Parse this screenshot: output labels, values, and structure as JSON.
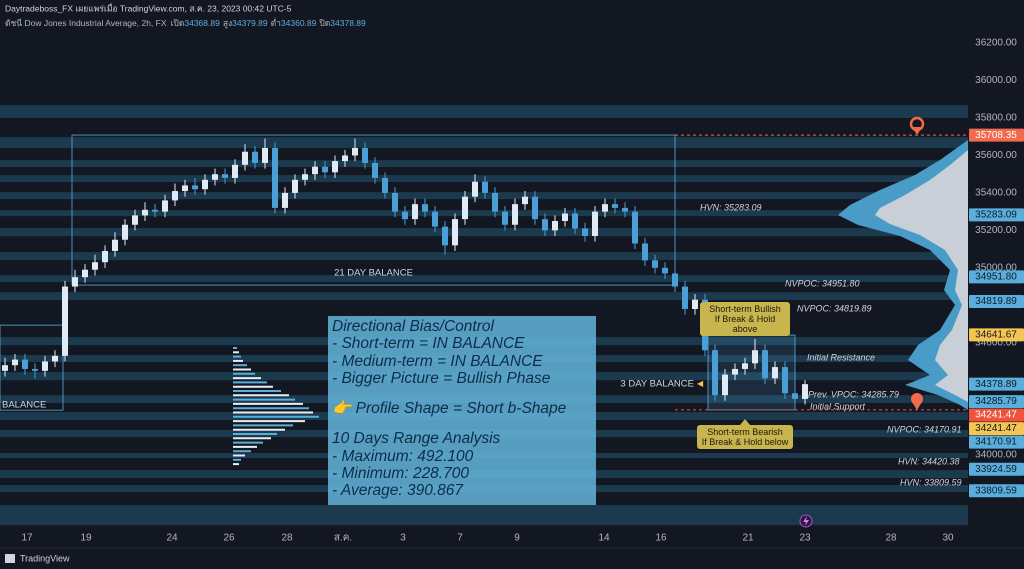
{
  "header": {
    "publisher": "Daytradeboss_FX เผยแพร่เมื่อ TradingView.com, ส.ค. 23, 2023 00:42 UTC-5",
    "symbol": "ดัชนี Dow Jones Industrial Average, 2h, FX",
    "ohlc": [
      {
        "label": "เปิด",
        "value": "34368.89"
      },
      {
        "label": "สูง",
        "value": "34379.89"
      },
      {
        "label": "ต่ำ",
        "value": "34360.89"
      },
      {
        "label": "ปิด",
        "value": "34378.89"
      }
    ]
  },
  "chart_data": {
    "type": "candlestick",
    "up_color": "#dfeaf5",
    "down_color": "#4a9fd6",
    "zone_color": "#1d3e52",
    "xlim": [
      -0.5,
      96.3
    ],
    "ylim": [
      33600,
      36270
    ],
    "xticks": [
      {
        "value": 2.2,
        "label": "17"
      },
      {
        "value": 8.1,
        "label": "19"
      },
      {
        "value": 16.7,
        "label": "24"
      },
      {
        "value": 22.4,
        "label": "26"
      },
      {
        "value": 28.2,
        "label": "28"
      },
      {
        "value": 33.8,
        "label": "ส.ค."
      },
      {
        "value": 39.8,
        "label": "3"
      },
      {
        "value": 45.5,
        "label": "7"
      },
      {
        "value": 51.2,
        "label": "9"
      },
      {
        "value": 59.9,
        "label": "14"
      },
      {
        "value": 65.6,
        "label": "16"
      },
      {
        "value": 74.3,
        "label": "21"
      },
      {
        "value": 80,
        "label": "23"
      },
      {
        "value": 88.6,
        "label": "28"
      },
      {
        "value": 94.3,
        "label": "30"
      }
    ],
    "yticks": [
      {
        "value": 36200,
        "label": "36200.00"
      },
      {
        "value": 36000,
        "label": "36000.00"
      },
      {
        "value": 35800,
        "label": "35800.00"
      },
      {
        "value": 35600,
        "label": "35600.00"
      },
      {
        "value": 35400,
        "label": "35400.00"
      },
      {
        "value": 35200,
        "label": "35200.00"
      },
      {
        "value": 35000,
        "label": "35000.00"
      },
      {
        "value": 34600,
        "label": "34600.00"
      },
      {
        "value": 34000,
        "label": "34000.00"
      }
    ],
    "ohlc": [
      [
        34450,
        34520,
        34420,
        34480
      ],
      [
        34480,
        34540,
        34450,
        34510
      ],
      [
        34510,
        34540,
        34430,
        34460
      ],
      [
        34460,
        34490,
        34410,
        34450
      ],
      [
        34450,
        34530,
        34420,
        34500
      ],
      [
        34500,
        34560,
        34470,
        34530
      ],
      [
        34530,
        34930,
        34500,
        34900
      ],
      [
        34900,
        34990,
        34870,
        34950
      ],
      [
        34950,
        35020,
        34920,
        34990
      ],
      [
        34990,
        35070,
        34960,
        35030
      ],
      [
        35030,
        35120,
        35000,
        35090
      ],
      [
        35090,
        35190,
        35060,
        35150
      ],
      [
        35150,
        35260,
        35120,
        35230
      ],
      [
        35230,
        35310,
        35200,
        35280
      ],
      [
        35280,
        35350,
        35250,
        35310
      ],
      [
        35310,
        35340,
        35270,
        35300
      ],
      [
        35300,
        35390,
        35270,
        35360
      ],
      [
        35360,
        35450,
        35330,
        35410
      ],
      [
        35410,
        35470,
        35380,
        35440
      ],
      [
        35440,
        35480,
        35390,
        35420
      ],
      [
        35420,
        35500,
        35390,
        35470
      ],
      [
        35470,
        35530,
        35440,
        35500
      ],
      [
        35500,
        35530,
        35450,
        35480
      ],
      [
        35480,
        35580,
        35450,
        35550
      ],
      [
        35550,
        35660,
        35520,
        35620
      ],
      [
        35620,
        35650,
        35530,
        35560
      ],
      [
        35560,
        35690,
        35530,
        35640
      ],
      [
        35640,
        35670,
        35290,
        35320
      ],
      [
        35320,
        35430,
        35290,
        35400
      ],
      [
        35400,
        35500,
        35370,
        35470
      ],
      [
        35470,
        35530,
        35440,
        35500
      ],
      [
        35500,
        35570,
        35470,
        35540
      ],
      [
        35540,
        35570,
        35480,
        35510
      ],
      [
        35510,
        35600,
        35480,
        35570
      ],
      [
        35570,
        35630,
        35540,
        35600
      ],
      [
        35600,
        35690,
        35570,
        35640
      ],
      [
        35640,
        35670,
        35530,
        35560
      ],
      [
        35560,
        35590,
        35450,
        35480
      ],
      [
        35480,
        35510,
        35370,
        35400
      ],
      [
        35400,
        35430,
        35270,
        35300
      ],
      [
        35300,
        35330,
        35230,
        35260
      ],
      [
        35260,
        35370,
        35230,
        35340
      ],
      [
        35340,
        35370,
        35270,
        35300
      ],
      [
        35300,
        35330,
        35190,
        35220
      ],
      [
        35220,
        35250,
        35070,
        35120
      ],
      [
        35120,
        35290,
        35090,
        35260
      ],
      [
        35260,
        35410,
        35230,
        35380
      ],
      [
        35380,
        35500,
        35350,
        35460
      ],
      [
        35460,
        35490,
        35370,
        35400
      ],
      [
        35400,
        35430,
        35270,
        35300
      ],
      [
        35300,
        35330,
        35200,
        35230
      ],
      [
        35230,
        35370,
        35200,
        35340
      ],
      [
        35340,
        35410,
        35310,
        35380
      ],
      [
        35380,
        35410,
        35230,
        35260
      ],
      [
        35260,
        35290,
        35170,
        35200
      ],
      [
        35200,
        35280,
        35170,
        35250
      ],
      [
        35250,
        35320,
        35220,
        35290
      ],
      [
        35290,
        35320,
        35180,
        35210
      ],
      [
        35210,
        35240,
        35140,
        35170
      ],
      [
        35170,
        35330,
        35140,
        35300
      ],
      [
        35300,
        35370,
        35270,
        35340
      ],
      [
        35340,
        35370,
        35290,
        35320
      ],
      [
        35320,
        35350,
        35270,
        35300
      ],
      [
        35300,
        35330,
        35100,
        35130
      ],
      [
        35130,
        35160,
        35010,
        35040
      ],
      [
        35040,
        35070,
        34970,
        35000
      ],
      [
        35000,
        35030,
        34940,
        34970
      ],
      [
        34970,
        35000,
        34870,
        34900
      ],
      [
        34900,
        34930,
        34750,
        34780
      ],
      [
        34780,
        34860,
        34750,
        34830
      ],
      [
        34830,
        34860,
        34530,
        34560
      ],
      [
        34560,
        34590,
        34290,
        34320
      ],
      [
        34320,
        34460,
        34290,
        34430
      ],
      [
        34430,
        34490,
        34400,
        34460
      ],
      [
        34460,
        34520,
        34430,
        34490
      ],
      [
        34490,
        34620,
        34460,
        34560
      ],
      [
        34560,
        34590,
        34380,
        34410
      ],
      [
        34410,
        34500,
        34380,
        34470
      ],
      [
        34470,
        34500,
        34300,
        34330
      ],
      [
        34330,
        34360,
        34270,
        34300
      ],
      [
        34300,
        34400,
        34270,
        34378.89
      ]
    ],
    "zones": [
      [
        35800,
        35869
      ],
      [
        35639,
        35698
      ],
      [
        35538,
        35575
      ],
      [
        35458,
        35495
      ],
      [
        35367,
        35404
      ],
      [
        35276,
        35308
      ],
      [
        35169,
        35212
      ],
      [
        35041,
        35084
      ],
      [
        34924,
        34961
      ],
      [
        34828,
        34870
      ],
      [
        34587,
        34630
      ],
      [
        34497,
        34534
      ],
      [
        34400,
        34443
      ],
      [
        34278,
        34320
      ],
      [
        34187,
        34230
      ],
      [
        34096,
        34134
      ],
      [
        33984,
        34011
      ],
      [
        33877,
        33920
      ],
      [
        33802,
        33840
      ],
      [
        33626,
        33733
      ]
    ],
    "boxes": [
      {
        "label": "21 DAY BALANCE",
        "x": [
          6.7,
          67
        ],
        "y": [
          34908,
          35709
        ]
      },
      {
        "label": "BALANCE",
        "x": [
          -0.5,
          5.8
        ],
        "y": [
          34240,
          34694
        ]
      },
      {
        "label": "3 DAY BALANCE",
        "x": [
          70.3,
          79
        ],
        "y": [
          34241,
          34641
        ]
      }
    ],
    "price_labels": [
      {
        "value": 35708.35,
        "label": "35708.35",
        "color": "#f2694d",
        "dashed": true
      },
      {
        "value": 35283.09,
        "label": "35283.09",
        "color": "#5aaedc"
      },
      {
        "value": 34951.8,
        "label": "34951.80",
        "color": "#5aaedc"
      },
      {
        "value": 34819.89,
        "label": "34819.89",
        "color": "#5aaedc"
      },
      {
        "value": 34641.67,
        "label": "34641.67",
        "color": "#f5c451"
      },
      {
        "value": 34378.89,
        "label": "34378.89",
        "color": "#5aaedc"
      },
      {
        "value": 34285.79,
        "label": "34285.79",
        "color": "#5aaedc"
      },
      {
        "value": 34241.47,
        "label": "34241.47",
        "color": "#f0523b",
        "dashed": true
      },
      {
        "value": 34241.47,
        "label": "34241.47",
        "color": "#f5c451"
      },
      {
        "value": 34170.91,
        "label": "34170.91",
        "color": "#5aaedc"
      },
      {
        "value": 33924.59,
        "label": "33924.59",
        "color": "#5aaedc"
      },
      {
        "value": 33809.59,
        "label": "33809.59",
        "color": "#5aaedc"
      }
    ],
    "annotations": [
      "HVN: 35283.09",
      "NVPOC: 34951.80",
      "NVPOC: 34819.89",
      "Initial Resistance",
      "Prev. VPOC: 34285.79",
      "Initial Support",
      "NVPOC: 34170.91",
      "HVN: 34420.38",
      "HVN: 33809.59"
    ]
  },
  "callouts": [
    [
      "Short-term Bullish",
      "If Break & Hold above"
    ],
    [
      "Short-term Bearish",
      "If Break & Hold below"
    ]
  ],
  "info_box": [
    "Directional Bias/Control",
    "- Short-term = IN BALANCE",
    "- Medium-term = IN BALANCE",
    "- Bigger Picture = Bullish Phase",
    "👉 Profile Shape = Short b-Shape",
    "10 Days Range Analysis",
    "- Maximum: 492.100",
    "- Minimum: 228.700",
    "- Average: 390.867"
  ],
  "footer": {
    "logo": "TradingView"
  }
}
